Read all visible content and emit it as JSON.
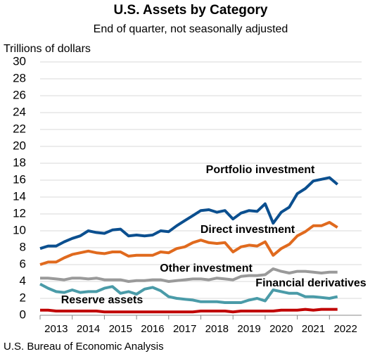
{
  "chart_data": {
    "type": "line",
    "title": "U.S. Assets by Category",
    "subtitle": "End of quarter, not seasonally adjusted",
    "y_axis_label": "Trillions of dollars",
    "source": "U.S. Bureau of Economic Analysis",
    "x": [
      2013,
      2013.25,
      2013.5,
      2013.75,
      2014,
      2014.25,
      2014.5,
      2014.75,
      2015,
      2015.25,
      2015.5,
      2015.75,
      2016,
      2016.25,
      2016.5,
      2016.75,
      2017,
      2017.25,
      2017.5,
      2017.75,
      2018,
      2018.25,
      2018.5,
      2018.75,
      2019,
      2019.25,
      2019.5,
      2019.75,
      2020,
      2020.25,
      2020.5,
      2020.75,
      2021,
      2021.25,
      2021.5,
      2021.75,
      2022,
      2022.25
    ],
    "xlim": [
      2013,
      2023
    ],
    "xticks": [
      {
        "value": 2013.5,
        "label": "2013"
      },
      {
        "value": 2014.5,
        "label": "2014"
      },
      {
        "value": 2015.5,
        "label": "2015"
      },
      {
        "value": 2016.5,
        "label": "2016"
      },
      {
        "value": 2017.5,
        "label": "2017"
      },
      {
        "value": 2018.5,
        "label": "2018"
      },
      {
        "value": 2019.5,
        "label": "2019"
      },
      {
        "value": 2020.5,
        "label": "2020"
      },
      {
        "value": 2021.5,
        "label": "2021"
      },
      {
        "value": 2022.5,
        "label": "2022"
      }
    ],
    "ylim": [
      0,
      30
    ],
    "yticks": [
      0,
      2,
      4,
      6,
      8,
      10,
      12,
      14,
      16,
      18,
      20,
      22,
      24,
      26,
      28,
      30
    ],
    "grid": true,
    "series": [
      {
        "name": "Portfolio investment",
        "color": "#0b4f8f",
        "values": [
          7.9,
          8.2,
          8.2,
          8.7,
          9.1,
          9.4,
          10.0,
          9.8,
          9.7,
          10.1,
          10.2,
          9.4,
          9.5,
          9.4,
          9.5,
          10.0,
          9.9,
          10.6,
          11.2,
          11.8,
          12.4,
          12.5,
          12.2,
          12.4,
          11.4,
          12.1,
          12.4,
          12.3,
          13.2,
          10.9,
          12.2,
          12.8,
          14.4,
          15.0,
          15.9,
          16.1,
          16.3,
          15.5
        ]
      },
      {
        "name": "Direct investment",
        "color": "#e06a1e",
        "values": [
          6.0,
          6.3,
          6.3,
          6.8,
          7.2,
          7.4,
          7.6,
          7.4,
          7.3,
          7.5,
          7.5,
          7.0,
          7.1,
          7.1,
          7.1,
          7.5,
          7.4,
          7.9,
          8.1,
          8.6,
          8.9,
          8.6,
          8.5,
          8.6,
          7.5,
          8.1,
          8.3,
          8.2,
          8.7,
          7.1,
          7.9,
          8.4,
          9.4,
          9.9,
          10.6,
          10.6,
          11.0,
          10.4
        ]
      },
      {
        "name": "Other investment",
        "color": "#9a9a9a",
        "values": [
          4.4,
          4.4,
          4.3,
          4.2,
          4.4,
          4.4,
          4.3,
          4.4,
          4.2,
          4.2,
          4.2,
          4.0,
          4.1,
          4.1,
          4.2,
          4.2,
          4.0,
          4.1,
          4.2,
          4.3,
          4.3,
          4.2,
          4.4,
          4.3,
          4.2,
          4.6,
          4.7,
          4.7,
          4.8,
          5.5,
          5.2,
          5.0,
          5.2,
          5.2,
          5.1,
          5.0,
          5.1,
          5.1
        ]
      },
      {
        "name": "Financial derivatives",
        "color": "#4a9ba8",
        "values": [
          3.7,
          3.2,
          2.8,
          2.7,
          3.0,
          2.7,
          2.8,
          2.8,
          3.2,
          3.4,
          2.6,
          2.8,
          2.5,
          3.1,
          3.3,
          2.9,
          2.2,
          2.0,
          1.9,
          1.8,
          1.6,
          1.6,
          1.6,
          1.5,
          1.5,
          1.5,
          1.8,
          2.0,
          1.7,
          3.0,
          2.8,
          2.6,
          2.6,
          2.2,
          2.2,
          2.1,
          2.0,
          2.2
        ]
      },
      {
        "name": "Reserve assets",
        "color": "#c00000",
        "values": [
          0.6,
          0.6,
          0.5,
          0.5,
          0.5,
          0.5,
          0.5,
          0.5,
          0.4,
          0.4,
          0.4,
          0.4,
          0.4,
          0.4,
          0.4,
          0.4,
          0.4,
          0.4,
          0.4,
          0.4,
          0.5,
          0.5,
          0.5,
          0.5,
          0.4,
          0.5,
          0.5,
          0.5,
          0.5,
          0.5,
          0.6,
          0.6,
          0.6,
          0.7,
          0.6,
          0.7,
          0.7,
          0.7
        ]
      }
    ]
  }
}
